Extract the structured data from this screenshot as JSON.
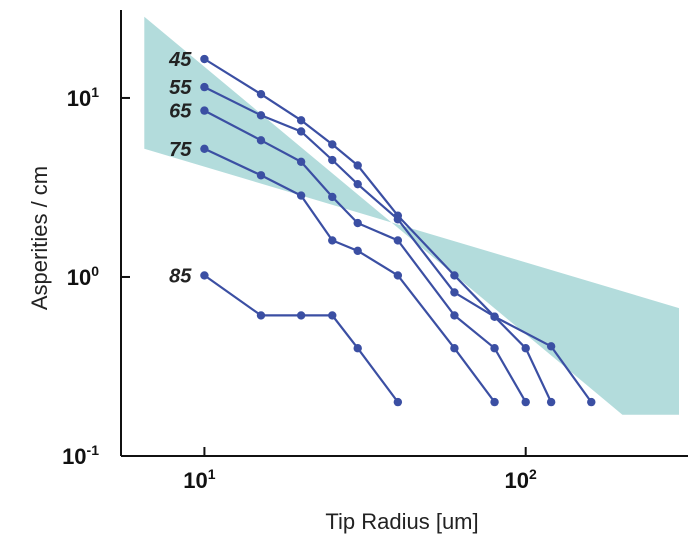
{
  "chart_data": {
    "type": "line",
    "xlabel": "Tip Radius [um]",
    "ylabel": "Asperities / cm",
    "xscale": "log",
    "yscale": "log",
    "xlim": [
      5.5,
      320
    ],
    "ylim": [
      0.1,
      31
    ],
    "xticks": [
      {
        "value": 10,
        "base": "10",
        "exp": "1"
      },
      {
        "value": 100,
        "base": "10",
        "exp": "2"
      }
    ],
    "yticks": [
      {
        "value": 0.1,
        "base": "10",
        "exp": "-1"
      },
      {
        "value": 1,
        "base": "10",
        "exp": "0"
      },
      {
        "value": 10,
        "base": "10",
        "exp": "1"
      }
    ],
    "band": {
      "color": "#b3dcdc",
      "x": [
        6.5,
        6.5,
        300,
        300,
        200
      ],
      "y": [
        28.4,
        5.2,
        0.67,
        0.17,
        0.17
      ]
    },
    "line_color": "#3b4fa3",
    "series": [
      {
        "name": "45",
        "x": [
          10,
          15,
          20,
          25,
          30,
          40,
          60,
          80,
          120,
          160
        ],
        "y": [
          16.5,
          10.5,
          7.5,
          5.5,
          4.2,
          2.2,
          1.02,
          0.6,
          0.41,
          0.2
        ]
      },
      {
        "name": "55",
        "x": [
          10,
          15,
          20,
          25,
          30,
          40,
          60,
          80,
          100,
          120
        ],
        "y": [
          11.5,
          8.0,
          6.5,
          4.5,
          3.3,
          2.1,
          0.82,
          0.6,
          0.4,
          0.2
        ]
      },
      {
        "name": "65",
        "x": [
          10,
          15,
          20,
          25,
          30,
          40,
          60,
          80,
          100
        ],
        "y": [
          8.5,
          5.8,
          4.4,
          2.8,
          2.0,
          1.6,
          0.61,
          0.4,
          0.2
        ]
      },
      {
        "name": "75",
        "x": [
          10,
          15,
          20,
          25,
          30,
          40,
          60,
          80
        ],
        "y": [
          5.2,
          3.7,
          2.85,
          1.6,
          1.4,
          1.02,
          0.4,
          0.2
        ]
      },
      {
        "name": "85",
        "x": [
          10,
          15,
          20,
          25,
          30,
          40
        ],
        "y": [
          1.02,
          0.61,
          0.61,
          0.61,
          0.4,
          0.2
        ]
      }
    ]
  }
}
